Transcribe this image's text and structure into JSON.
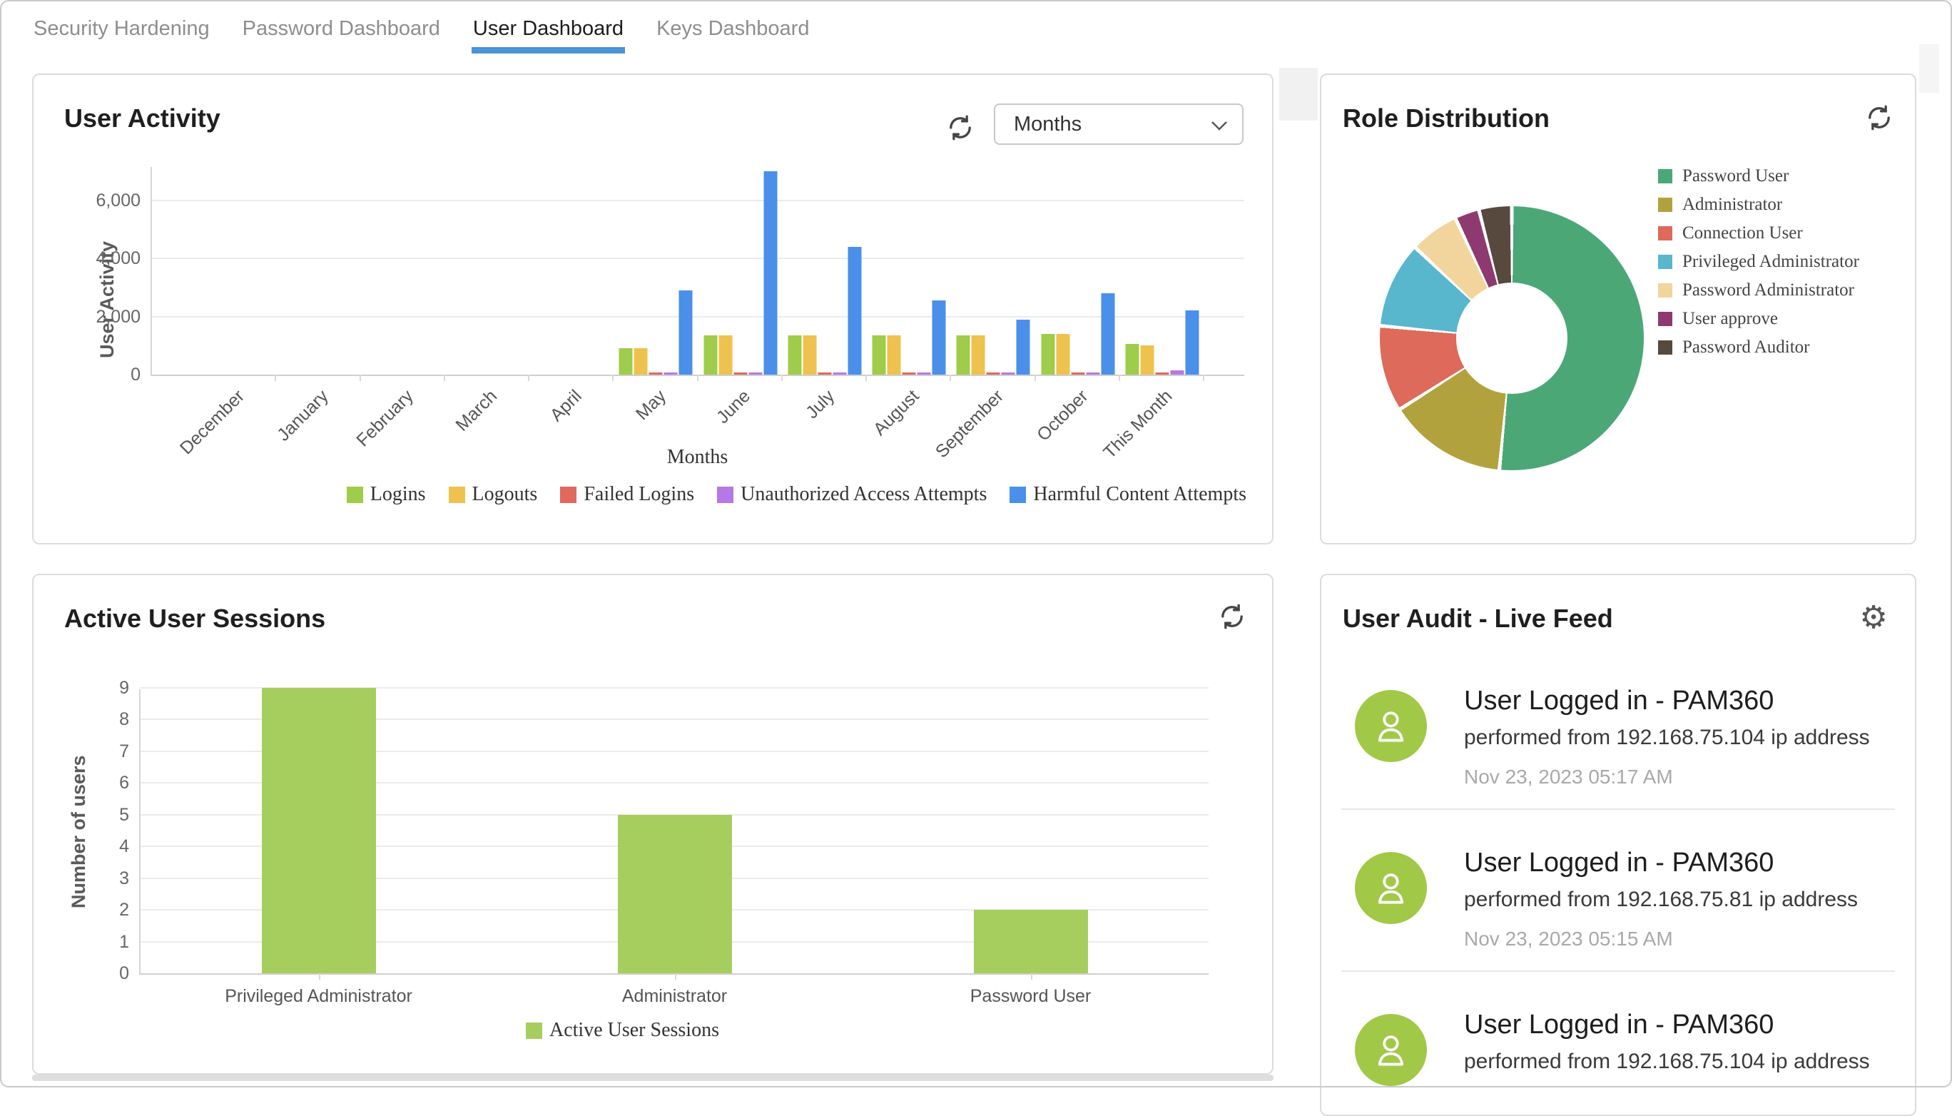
{
  "colors": {
    "accent": "#4a94d8",
    "panel_border": "#dcdcdc",
    "avatar_green": "#a1c947"
  },
  "tabs": {
    "items": [
      {
        "label": "Security Hardening",
        "active": false
      },
      {
        "label": "Password Dashboard",
        "active": false
      },
      {
        "label": "User Dashboard",
        "active": true
      },
      {
        "label": "Keys Dashboard",
        "active": false
      }
    ]
  },
  "user_activity_panel": {
    "title": "User Activity",
    "interval_dropdown": {
      "value": "Months"
    }
  },
  "role_distribution_panel": {
    "title": "Role Distribution"
  },
  "active_sessions_panel": {
    "title": "Active User Sessions"
  },
  "user_audit_panel": {
    "title": "User Audit - Live Feed",
    "items": [
      {
        "title": "User Logged in - PAM360",
        "detail": "performed from 192.168.75.104 ip address",
        "time": "Nov 23, 2023 05:17 AM"
      },
      {
        "title": "User Logged in - PAM360",
        "detail": "performed from 192.168.75.81 ip address",
        "time": "Nov 23, 2023 05:15 AM"
      },
      {
        "title": "User Logged in - PAM360",
        "detail": "performed from 192.168.75.104 ip address",
        "time": ""
      }
    ]
  },
  "chart_data": [
    {
      "id": "user_activity",
      "type": "bar",
      "title": "User Activity",
      "xlabel": "Months",
      "ylabel": "User Activity",
      "categories": [
        "December",
        "January",
        "February",
        "March",
        "April",
        "May",
        "June",
        "July",
        "August",
        "September",
        "October",
        "This Month"
      ],
      "series": [
        {
          "name": "Logins",
          "color": "#9fcc4a",
          "values": [
            0,
            0,
            0,
            0,
            0,
            900,
            1350,
            1350,
            1350,
            1350,
            1400,
            1050
          ]
        },
        {
          "name": "Logouts",
          "color": "#eec24e",
          "values": [
            0,
            0,
            0,
            0,
            0,
            900,
            1350,
            1350,
            1350,
            1350,
            1400,
            1000
          ]
        },
        {
          "name": "Failed Logins",
          "color": "#e0685c",
          "values": [
            0,
            0,
            0,
            0,
            0,
            40,
            30,
            30,
            30,
            30,
            20,
            20
          ]
        },
        {
          "name": "Unauthorized Access Attempts",
          "color": "#b678e6",
          "values": [
            0,
            0,
            0,
            0,
            0,
            60,
            70,
            60,
            80,
            80,
            30,
            150
          ]
        },
        {
          "name": "Harmful Content Attempts",
          "color": "#4a90ea",
          "values": [
            0,
            0,
            0,
            0,
            0,
            2900,
            7000,
            4400,
            2550,
            1900,
            2800,
            2200
          ]
        }
      ],
      "yticks": [
        0,
        2000,
        4000,
        6000
      ],
      "ytick_labels": [
        "0",
        "2,000",
        "4,000",
        "6,000"
      ],
      "ylim": [
        0,
        7200
      ],
      "grid": true,
      "legend_position": "bottom-right"
    },
    {
      "id": "role_distribution",
      "type": "pie",
      "title": "Role Distribution",
      "donut": true,
      "labels": [
        "Password User",
        "Administrator",
        "Connection User",
        "Privileged Administrator",
        "Password Administrator",
        "User approve",
        "Password Auditor"
      ],
      "values_pct": [
        51.5,
        14.5,
        10.5,
        10.5,
        6,
        3,
        4
      ],
      "colors": [
        "#4ca777",
        "#b2a23d",
        "#dd6a5a",
        "#58b6cd",
        "#f2d59c",
        "#8e3a70",
        "#57493d"
      ],
      "legend_position": "top-right"
    },
    {
      "id": "active_user_sessions",
      "type": "bar",
      "title": "Active User Sessions",
      "xlabel": "",
      "ylabel": "Number of users",
      "categories": [
        "Privileged Administrator",
        "Administrator",
        "Password User"
      ],
      "series": [
        {
          "name": "Active User Sessions",
          "color": "#a6ce5f",
          "values": [
            9,
            5,
            2
          ]
        }
      ],
      "yticks": [
        0,
        1,
        2,
        3,
        4,
        5,
        6,
        7,
        8,
        9
      ],
      "ytick_labels": [
        "0",
        "1",
        "2",
        "3",
        "4",
        "5",
        "6",
        "7",
        "8",
        "9"
      ],
      "ylim": [
        0,
        9
      ],
      "grid": true,
      "legend_position": "bottom-center"
    }
  ]
}
